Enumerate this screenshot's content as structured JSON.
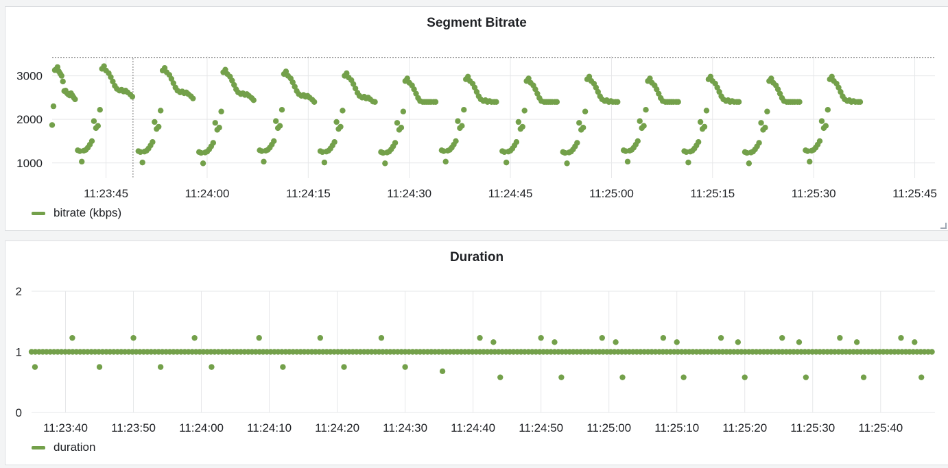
{
  "accent": "#73a04a",
  "chart_data": [
    {
      "type": "scatter",
      "title": "Segment Bitrate",
      "xlabel": "",
      "ylabel": "",
      "x_unit": "time",
      "x_domain": [
        "11:23:37",
        "11:25:48"
      ],
      "ylim": [
        650,
        3450
      ],
      "yticks": [
        1000,
        2000,
        3000
      ],
      "xticks": [
        "11:23:45",
        "11:24:00",
        "11:24:15",
        "11:24:30",
        "11:24:45",
        "11:25:00",
        "11:25:15",
        "11:25:30",
        "11:25:45"
      ],
      "threshold": 3420,
      "crosshair_time": "11:23:49",
      "grid": true,
      "legend": {
        "position": "bottom-left",
        "entries": [
          "bitrate (kbps)"
        ]
      },
      "series": [
        {
          "name": "bitrate (kbps)",
          "color": "#73a04a",
          "points": []
        }
      ]
    },
    {
      "type": "scatter",
      "title": "Duration",
      "xlabel": "",
      "ylabel": "",
      "x_unit": "time",
      "x_domain": [
        "11:23:35",
        "11:25:48"
      ],
      "ylim": [
        0,
        2
      ],
      "yticks": [
        0,
        1,
        2
      ],
      "xticks": [
        "11:23:40",
        "11:23:50",
        "11:24:00",
        "11:24:10",
        "11:24:20",
        "11:24:30",
        "11:24:40",
        "11:24:50",
        "11:25:00",
        "11:25:10",
        "11:25:20",
        "11:25:30",
        "11:25:40"
      ],
      "baseline_value": 1,
      "baseline_time_range": [
        "11:23:35",
        "11:25:48"
      ],
      "outliers": [
        [
          "11:23:35.5",
          0.75
        ],
        [
          "11:23:41",
          1.23
        ],
        [
          "11:23:45",
          0.75
        ],
        [
          "11:23:50",
          1.23
        ],
        [
          "11:23:54",
          0.75
        ],
        [
          "11:23:59",
          1.23
        ],
        [
          "11:24:01.5",
          0.75
        ],
        [
          "11:24:08.5",
          1.23
        ],
        [
          "11:24:12",
          0.75
        ],
        [
          "11:24:17.5",
          1.23
        ],
        [
          "11:24:21",
          0.75
        ],
        [
          "11:24:26.5",
          1.23
        ],
        [
          "11:24:30",
          0.75
        ],
        [
          "11:24:35.5",
          0.68
        ],
        [
          "11:24:41",
          1.23
        ],
        [
          "11:24:43",
          1.16
        ],
        [
          "11:24:44",
          0.58
        ],
        [
          "11:24:50",
          1.23
        ],
        [
          "11:24:52",
          1.16
        ],
        [
          "11:24:53",
          0.58
        ],
        [
          "11:24:59",
          1.23
        ],
        [
          "11:25:01",
          1.16
        ],
        [
          "11:25:02",
          0.58
        ],
        [
          "11:25:08",
          1.23
        ],
        [
          "11:25:10",
          1.16
        ],
        [
          "11:25:11",
          0.58
        ],
        [
          "11:25:16.5",
          1.23
        ],
        [
          "11:25:19",
          1.16
        ],
        [
          "11:25:20",
          0.58
        ],
        [
          "11:25:25.5",
          1.23
        ],
        [
          "11:25:28",
          1.16
        ],
        [
          "11:25:29",
          0.58
        ],
        [
          "11:25:34",
          1.23
        ],
        [
          "11:25:36.5",
          1.16
        ],
        [
          "11:25:37.5",
          0.58
        ],
        [
          "11:25:43",
          1.23
        ],
        [
          "11:25:45",
          1.16
        ],
        [
          "11:25:46",
          0.58
        ]
      ],
      "grid": true,
      "legend": {
        "position": "bottom-left",
        "entries": [
          "duration"
        ]
      },
      "series": [
        {
          "name": "duration",
          "color": "#73a04a"
        }
      ]
    }
  ]
}
